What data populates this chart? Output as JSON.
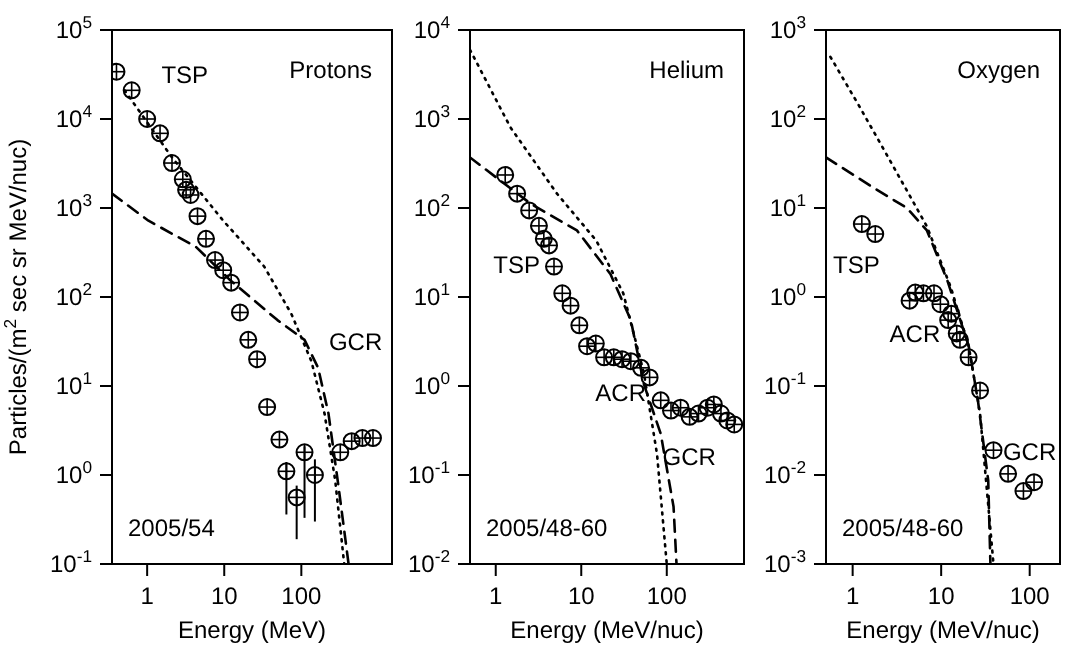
{
  "chart_data": [
    {
      "type": "scatter",
      "title": "Protons",
      "subtitle": "2005/54",
      "xlabel": "Energy (MeV)",
      "ylabel": "Particles/(m$^{2}$ sec sr MeV/nuc)",
      "log": "xy",
      "xlim": [
        0.35,
        1500
      ],
      "ylim": [
        0.1,
        100000
      ],
      "xticks": [
        1,
        10,
        100
      ],
      "yticks": [
        {
          "value": 0.1,
          "label": "10$^{-1}$"
        },
        {
          "value": 1,
          "label": "10$^{0}$"
        },
        {
          "value": 10,
          "label": "10$^{1}$"
        },
        {
          "value": 100,
          "label": "10$^{2}$"
        },
        {
          "value": 1000,
          "label": "10$^{3}$"
        },
        {
          "value": 10000,
          "label": "10$^{4}$"
        },
        {
          "value": 100000,
          "label": "10$^{5}$"
        }
      ],
      "annotations": [
        "TSP",
        "GCR"
      ],
      "series": [
        {
          "type": "scatter",
          "marker": "circle",
          "color": "#000000",
          "x": [
            0.4,
            0.63,
            1.0,
            1.47,
            2.1,
            2.9,
            3.2,
            3.66,
            4.5,
            5.8,
            7.6,
            9.7,
            12.3,
            16,
            20.5,
            26.7,
            36,
            52,
            64,
            87,
            110,
            150,
            320,
            450,
            620,
            850
          ],
          "values": [
            34000,
            21000,
            10000,
            6900,
            3200,
            2100,
            1600,
            1400,
            810,
            450,
            260,
            200,
            145,
            67,
            33,
            20,
            5.8,
            2.5,
            1.1,
            0.56,
            1.8,
            1.0,
            1.8,
            2.4,
            2.6,
            2.6
          ],
          "errors": [
            null,
            null,
            null,
            null,
            null,
            null,
            null,
            null,
            null,
            null,
            null,
            null,
            null,
            null,
            null,
            null,
            null,
            null,
            [
              0.36,
              1.4
            ],
            [
              0.19,
              0.76
            ],
            [
              0.33,
              2.1
            ],
            [
              0.3,
              1.5
            ],
            null,
            null,
            null,
            null
          ]
        },
        {
          "type": "line",
          "line_style": "dotted",
          "marker": "none",
          "color": "#000000",
          "x": [
            0.51,
            2.1,
            9.7,
            33,
            74,
            135,
            200,
            275,
            360
          ],
          "values": [
            21000,
            3700,
            720,
            220,
            65,
            19,
            4.9,
            0.87,
            0.1
          ]
        },
        {
          "type": "line",
          "line_style": "dashed",
          "marker": "none",
          "color": "#000000",
          "x": [
            0.35,
            1.04,
            4.3,
            11.9,
            49,
            110,
            165,
            225,
            305,
            410
          ],
          "values": [
            1450,
            720,
            365,
            155,
            55,
            33,
            16,
            4.9,
            0.72,
            0.1
          ]
        }
      ]
    },
    {
      "type": "scatter",
      "title": "Helium",
      "subtitle": "2005/48-60",
      "xlabel": "Energy (MeV/nuc)",
      "log": "xy",
      "xlim": [
        0.5,
        800
      ],
      "ylim": [
        0.01,
        10000
      ],
      "xticks": [
        1,
        10,
        100
      ],
      "yticks": [
        {
          "value": 0.01,
          "label": "10$^{-2}$"
        },
        {
          "value": 0.1,
          "label": "10$^{-1}$"
        },
        {
          "value": 1,
          "label": "10$^{0}$"
        },
        {
          "value": 10,
          "label": "10$^{1}$"
        },
        {
          "value": 100,
          "label": "10$^{2}$"
        },
        {
          "value": 1000,
          "label": "10$^{3}$"
        },
        {
          "value": 10000,
          "label": "10$^{4}$"
        }
      ],
      "annotations": [
        "TSP",
        "ACR",
        "GCR"
      ],
      "series": [
        {
          "type": "scatter",
          "marker": "circle",
          "color": "#000000",
          "x": [
            1.29,
            1.78,
            2.46,
            3.2,
            3.65,
            4.2,
            4.8,
            6.0,
            7.5,
            9.5,
            11.7,
            14.8,
            18.5,
            24,
            30,
            38,
            50,
            63,
            85,
            112,
            145,
            185,
            235,
            300,
            355,
            430,
            510,
            615
          ],
          "values": [
            235,
            145,
            94,
            63,
            45,
            38,
            22,
            11,
            8,
            4.8,
            2.8,
            3.0,
            2.1,
            2.1,
            2.0,
            1.9,
            1.6,
            1.25,
            0.69,
            0.53,
            0.57,
            0.45,
            0.49,
            0.57,
            0.62,
            0.49,
            0.41,
            0.37
          ]
        },
        {
          "type": "line",
          "line_style": "dotted",
          "marker": "none",
          "color": "#000000",
          "x": [
            0.5,
            1.48,
            5.2,
            15,
            31,
            54,
            77,
            100
          ],
          "values": [
            6000,
            810,
            145,
            43,
            11,
            1.4,
            0.17,
            0.01
          ]
        },
        {
          "type": "line",
          "line_style": "dashed",
          "marker": "none",
          "color": "#000000",
          "x": [
            0.5,
            2.55,
            8.9,
            22,
            38,
            54,
            85,
            120,
            130
          ],
          "values": [
            370,
            112,
            56,
            18,
            5.5,
            1.05,
            0.29,
            0.044,
            0.01
          ]
        }
      ]
    },
    {
      "type": "scatter",
      "title": "Oxygen",
      "subtitle": "2005/48-60",
      "xlabel": "Energy (MeV/nuc)",
      "log": "xy",
      "xlim": [
        0.5,
        220
      ],
      "ylim": [
        0.001,
        1000
      ],
      "xticks": [
        1,
        10,
        100
      ],
      "yticks": [
        {
          "value": 0.001,
          "label": "10$^{-3}$"
        },
        {
          "value": 0.01,
          "label": "10$^{-2}$"
        },
        {
          "value": 0.1,
          "label": "10$^{-1}$"
        },
        {
          "value": 1,
          "label": "10$^{0}$"
        },
        {
          "value": 10,
          "label": "10$^{1}$"
        },
        {
          "value": 100,
          "label": "10$^{2}$"
        },
        {
          "value": 1000,
          "label": "10$^{3}$"
        }
      ],
      "annotations": [
        "TSP",
        "ACR",
        "GCR"
      ],
      "series": [
        {
          "type": "scatter",
          "marker": "circle",
          "color": "#000000",
          "x": [
            1.27,
            1.8,
            4.4,
            5.1,
            6.3,
            8.3,
            9.8,
            12,
            13,
            15,
            16.3,
            20.4,
            27.5,
            39,
            57,
            85,
            112
          ],
          "values": [
            6.6,
            5.1,
            0.91,
            1.12,
            1.1,
            1.1,
            0.83,
            0.55,
            0.65,
            0.39,
            0.33,
            0.21,
            0.089,
            0.019,
            0.0103,
            0.0066,
            0.0083
          ]
        },
        {
          "type": "line",
          "line_style": "dotted",
          "marker": "none",
          "color": "#000000",
          "x": [
            0.56,
            1.2,
            2.9,
            6.9,
            12.8,
            20.5,
            27.5,
            39
          ],
          "values": [
            500,
            137,
            29,
            6.2,
            1.3,
            0.28,
            0.049,
            0.001
          ]
        },
        {
          "type": "line",
          "line_style": "dashed",
          "marker": "none",
          "color": "#000000",
          "x": [
            0.5,
            1.7,
            4.1,
            6.9,
            11.7,
            20.5,
            26,
            34,
            36
          ],
          "values": [
            37,
            17,
            10,
            5.6,
            1.55,
            0.28,
            0.069,
            0.0087,
            0.001
          ]
        }
      ]
    }
  ]
}
